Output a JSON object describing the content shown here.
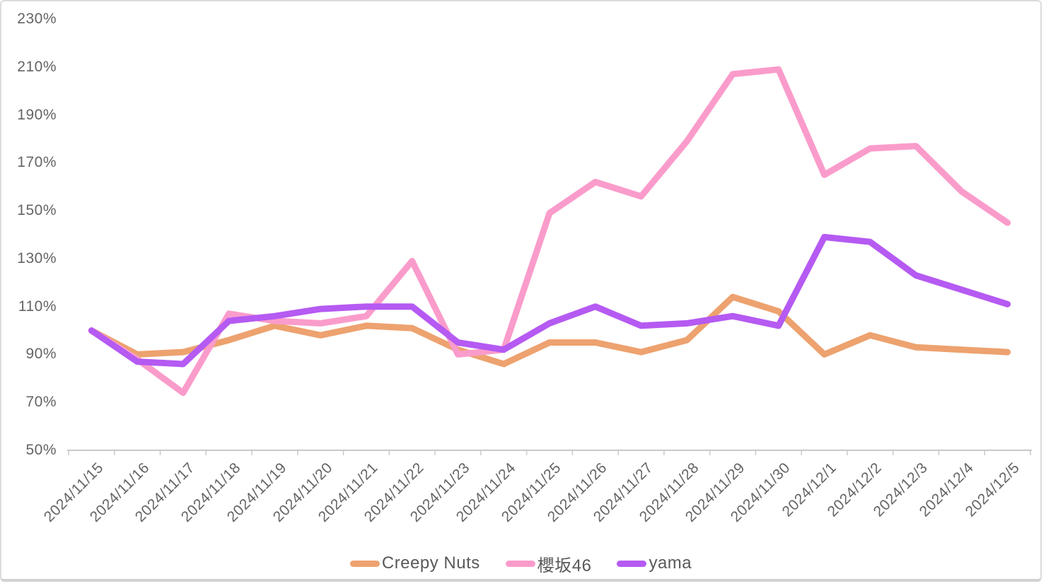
{
  "chart_data": {
    "type": "line",
    "title": "",
    "xlabel": "",
    "ylabel": "",
    "grid": "none",
    "legend_position": "bottom-center",
    "categories": [
      "2024/11/15",
      "2024/11/16",
      "2024/11/17",
      "2024/11/18",
      "2024/11/19",
      "2024/11/20",
      "2024/11/21",
      "2024/11/22",
      "2024/11/23",
      "2024/11/24",
      "2024/11/25",
      "2024/11/26",
      "2024/11/27",
      "2024/11/28",
      "2024/11/29",
      "2024/11/30",
      "2024/12/1",
      "2024/12/2",
      "2024/12/3",
      "2024/12/4",
      "2024/12/5"
    ],
    "series": [
      {
        "name": "Creepy Nuts",
        "color": "#EDA26F",
        "values": [
          100,
          90,
          91,
          96,
          102,
          98,
          102,
          101,
          92,
          86,
          95,
          95,
          91,
          96,
          114,
          108,
          90,
          98,
          93,
          92,
          91
        ]
      },
      {
        "name": "櫻坂46",
        "color": "#FA9CCB",
        "values": [
          100,
          88,
          74,
          107,
          104,
          103,
          106,
          129,
          90,
          92,
          149,
          162,
          156,
          179,
          207,
          209,
          165,
          176,
          177,
          158,
          145
        ]
      },
      {
        "name": "yama",
        "color": "#B55AF2",
        "values": [
          100,
          87,
          86,
          104,
          106,
          109,
          110,
          110,
          95,
          92,
          103,
          110,
          102,
          103,
          106,
          102,
          139,
          137,
          123,
          117,
          111
        ]
      }
    ],
    "y_axis": {
      "min": 50,
      "max": 230,
      "step": 20,
      "unit": "%",
      "tick_labels": [
        "230%",
        "210%",
        "190%",
        "170%",
        "150%",
        "130%",
        "110%",
        "90%",
        "70%",
        "50%"
      ]
    }
  },
  "colors": {
    "axis_line": "#C9C9C9",
    "tick_mark": "#C9C9C9",
    "axis_text": "#646464",
    "legend_text": "#595959",
    "card_border": "#DCDCDC",
    "background": "#FFFFFF"
  }
}
